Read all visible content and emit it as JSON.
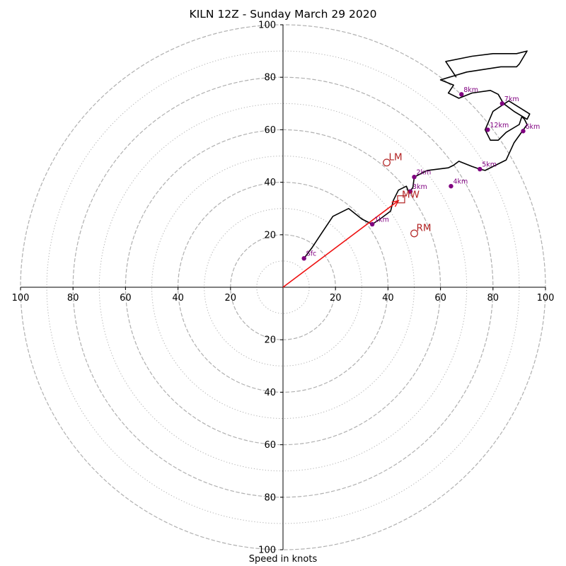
{
  "chart_data": {
    "type": "hodograph",
    "title": "KILN 12Z - Sunday March 29 2020",
    "xlabel": "Speed in knots",
    "ylabel": "",
    "axis_range": [
      -100,
      100
    ],
    "dashed_ring_speeds": [
      20,
      40,
      60,
      80,
      100
    ],
    "dotted_ring_speeds": [
      10,
      30,
      50,
      70,
      90
    ],
    "tick_labels": {
      "x": [
        "100",
        "80",
        "60",
        "40",
        "20",
        "20",
        "40",
        "60",
        "80",
        "100"
      ],
      "x_values": [
        -100,
        -80,
        -60,
        -40,
        -20,
        20,
        40,
        60,
        80,
        100
      ],
      "y": [
        "20",
        "40",
        "60",
        "80",
        "100",
        "20",
        "40",
        "60",
        "80",
        "100"
      ],
      "y_values": [
        20,
        40,
        60,
        80,
        100,
        -20,
        -40,
        -60,
        -80,
        -100
      ]
    },
    "hodograph_line": {
      "color": "#000000",
      "u": [
        8,
        11,
        15,
        19,
        25,
        30,
        34,
        37,
        41,
        42,
        44,
        47,
        48,
        49.5,
        50,
        55,
        63,
        65,
        67,
        72,
        75,
        77,
        85,
        88,
        93,
        92,
        91,
        90,
        85,
        82,
        79,
        77,
        80,
        83,
        86,
        94,
        93,
        88,
        84,
        82,
        79,
        72,
        67,
        63,
        65,
        60,
        70,
        83,
        89,
        90,
        93,
        89,
        80,
        72,
        62,
        66
      ],
      "v": [
        11,
        15,
        21,
        27,
        30,
        26,
        24,
        26,
        29,
        33,
        37,
        38.5,
        36,
        38,
        42,
        44.5,
        45.5,
        46.5,
        48,
        46,
        45,
        44.5,
        48.5,
        55,
        62,
        64,
        65,
        62,
        59,
        56,
        56,
        60,
        67,
        69,
        71,
        66,
        64,
        67,
        70,
        73.5,
        75,
        74,
        72,
        74,
        77,
        79,
        82,
        84,
        84,
        85,
        90,
        89,
        89,
        88,
        86,
        80
      ]
    },
    "height_labels": [
      {
        "label": "Sfc",
        "u": 8,
        "v": 11
      },
      {
        "label": "1km",
        "u": 34,
        "v": 24
      },
      {
        "label": "2km",
        "u": 50,
        "v": 42
      },
      {
        "label": "3km",
        "u": 48.5,
        "v": 36.5
      },
      {
        "label": "4km",
        "u": 64,
        "v": 38.5
      },
      {
        "label": "5km",
        "u": 75,
        "v": 45
      },
      {
        "label": "6km",
        "u": 91.5,
        "v": 59.5
      },
      {
        "label": "7km",
        "u": 83.5,
        "v": 70
      },
      {
        "label": "8km",
        "u": 68,
        "v": 73.5
      },
      {
        "label": "12km",
        "u": 78,
        "v": 60
      }
    ],
    "storm_motion": {
      "LM": {
        "label": "LM",
        "u": 39.5,
        "v": 47.5
      },
      "RM": {
        "label": "RM",
        "u": 50,
        "v": 20.5
      },
      "MW": {
        "label": "MW",
        "u": 45,
        "v": 33.5
      }
    },
    "shear_vector": {
      "u0": 0,
      "v0": 0,
      "u1": 44,
      "v1": 33,
      "color": "#ee1111"
    },
    "colors": {
      "point": "#800080",
      "storm_marker": "#b22222",
      "ring": "#b0b0b0",
      "axis": "#000000"
    }
  }
}
